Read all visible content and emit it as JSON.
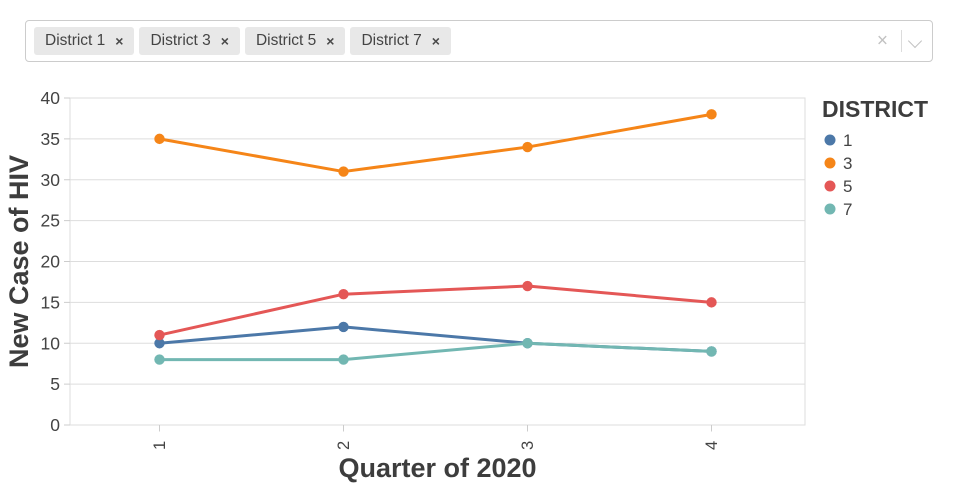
{
  "multiselect": {
    "selected": [
      "District 1",
      "District 3",
      "District 5",
      "District 7"
    ],
    "remove_icon": "×",
    "clear_all_icon": "×"
  },
  "chart_data": {
    "type": "line",
    "title": "",
    "xlabel": "Quarter of 2020",
    "ylabel": "New Case of HIV",
    "x": [
      1,
      2,
      3,
      4
    ],
    "x_tick_labels": [
      "1",
      "2",
      "3",
      "4"
    ],
    "xlim": [
      1,
      4
    ],
    "ylim": [
      0,
      40
    ],
    "y_ticks": [
      0,
      5,
      10,
      15,
      20,
      25,
      30,
      35,
      40
    ],
    "grid": true,
    "legend": {
      "title": "DISTRICT",
      "position": "right"
    },
    "series": [
      {
        "name": "1",
        "color": "#4c78a8",
        "values": [
          10,
          12,
          10,
          9
        ]
      },
      {
        "name": "3",
        "color": "#f58518",
        "values": [
          35,
          31,
          34,
          38
        ]
      },
      {
        "name": "5",
        "color": "#e45756",
        "values": [
          11,
          16,
          17,
          15
        ]
      },
      {
        "name": "7",
        "color": "#72b7b2",
        "values": [
          8,
          8,
          10,
          9
        ]
      }
    ]
  },
  "style": {
    "grid_color": "#dddddd",
    "axis_line_color": "#cccccc",
    "tick_label_color": "#444444",
    "title_color": "#3d3d3d",
    "chip_bg": "#e8e8e8",
    "box_border": "#cccccc"
  }
}
